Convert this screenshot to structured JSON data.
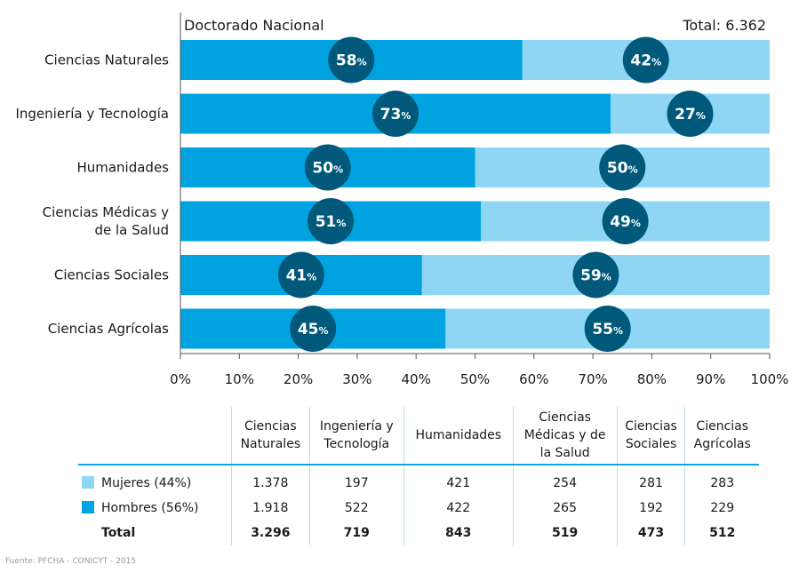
{
  "chart_data": {
    "type": "bar",
    "stacked": true,
    "orientation": "horizontal",
    "header_left": "Doctorado Nacional",
    "header_right": "Total: 6.362",
    "categories": [
      "Ciencias Naturales",
      "Ingeniería y Tecnología",
      "Humanidades",
      "Ciencias Médicas y de la Salud",
      "Ciencias Sociales",
      "Ciencias Agrícolas"
    ],
    "category_lines": [
      [
        "Ciencias Naturales"
      ],
      [
        "Ingeniería y Tecnología"
      ],
      [
        "Humanidades"
      ],
      [
        "Ciencias Médicas y",
        "de la Salud"
      ],
      [
        "Ciencias Sociales"
      ],
      [
        "Ciencias Agrícolas"
      ]
    ],
    "series": [
      {
        "name": "Hombres",
        "values": [
          58,
          73,
          50,
          51,
          41,
          45
        ]
      },
      {
        "name": "Mujeres",
        "values": [
          42,
          27,
          50,
          49,
          59,
          55
        ]
      }
    ],
    "xlim": [
      0,
      100
    ],
    "xticks": [
      "0%",
      "10%",
      "20%",
      "30%",
      "40%",
      "50%",
      "60%",
      "70%",
      "80%",
      "90%",
      "100%"
    ],
    "percent_symbol": "%",
    "colors": {
      "hombres": "#00a3e0",
      "mujeres": "#8fd6f5",
      "circle": "#00597a",
      "axis": "#555555"
    }
  },
  "table": {
    "headers": [
      [
        "Ciencias",
        "Naturales"
      ],
      [
        "Ingeniería y",
        "Tecnología"
      ],
      [
        "Humanidades"
      ],
      [
        "Ciencias",
        "Médicas y de",
        "la Salud"
      ],
      [
        "Ciencias",
        "Sociales"
      ],
      [
        "Ciencias",
        "Agrícolas"
      ]
    ],
    "rows": [
      {
        "label": "Mujeres (44%)",
        "swatch": "#8fd6f5",
        "values": [
          "1.378",
          "197",
          "421",
          "254",
          "281",
          "283"
        ]
      },
      {
        "label": "Hombres (56%)",
        "swatch": "#00a3e0",
        "values": [
          "1.918",
          "522",
          "422",
          "265",
          "192",
          "229"
        ]
      },
      {
        "label": "Total",
        "swatch": null,
        "values": [
          "3.296",
          "719",
          "843",
          "519",
          "473",
          "512"
        ]
      }
    ]
  },
  "source": "Fuente: PFCHA - CONICYT - 2015"
}
